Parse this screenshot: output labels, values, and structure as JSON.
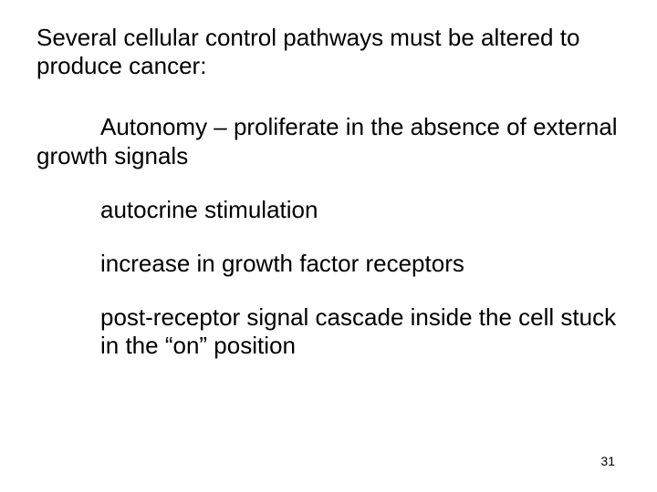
{
  "slide": {
    "background_color": "#ffffff",
    "text_color": "#000000",
    "font_family": "Arial",
    "heading_fontsize": 26,
    "body_fontsize": 26,
    "pagenum_fontsize": 14,
    "heading": "Several cellular control pathways must be altered to produce cancer:",
    "autonomy_line": "Autonomy – proliferate in the absence of external growth signals",
    "items": [
      "autocrine stimulation",
      "increase in growth factor receptors",
      "post-receptor signal cascade inside the cell stuck in the “on” position"
    ],
    "page_number": "31"
  }
}
